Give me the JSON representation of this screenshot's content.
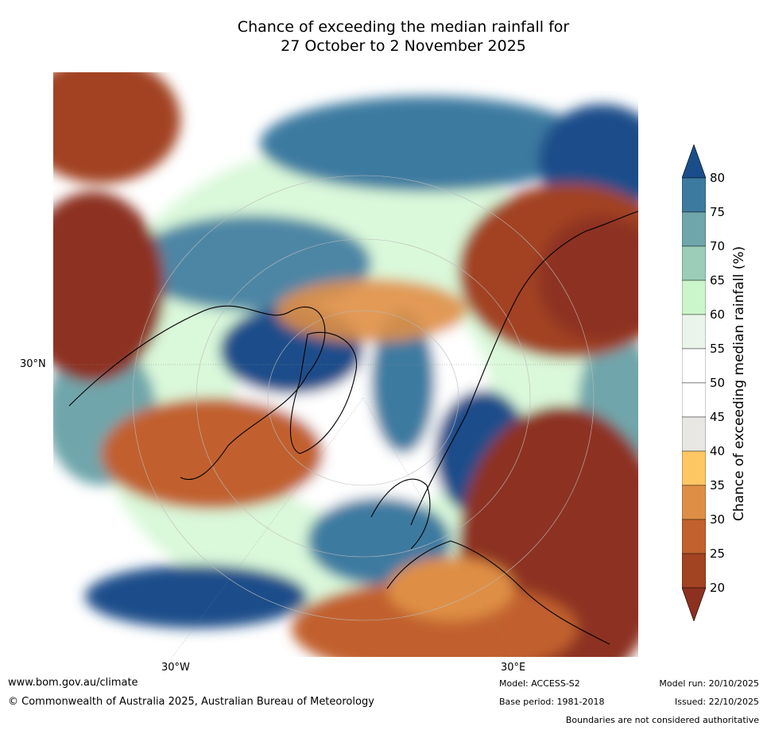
{
  "title": {
    "line1": "Chance of exceeding the median rainfall for",
    "line2": "27 October to 2 November 2025"
  },
  "axis_labels": {
    "latitude": "30°N",
    "longitude_west": "30°W",
    "longitude_east": "30°E"
  },
  "colorbar": {
    "title": "Chance of exceeding median rainfall (%)",
    "ticks": [
      "80",
      "75",
      "70",
      "65",
      "60",
      "55",
      "50",
      "45",
      "40",
      "35",
      "30",
      "25",
      "20"
    ],
    "colors": [
      "#1a4e8a",
      "#3d7aa0",
      "#6fa6ab",
      "#9ccdb8",
      "#cbf5cb",
      "#ebf4eb",
      "#ffffff",
      "#ffffff",
      "#e9e7e3",
      "#fdc764",
      "#df8f45",
      "#c1612e",
      "#a24321",
      "#8d3020"
    ],
    "extend": "both"
  },
  "regions": {
    "wet_color": "#1a4e8a",
    "dry_color": "#8d3020"
  },
  "footer": {
    "url": "www.bom.gov.au/climate",
    "copyright": "© Commonwealth of Australia 2025, Australian Bureau of Meteorology",
    "model": "Model: ACCESS-S2",
    "base_period": "Base period: 1981-2018",
    "model_run": "Model run: 20/10/2025",
    "issued": "Issued: 22/10/2025",
    "disclaimer": "Boundaries are not considered authoritative"
  }
}
